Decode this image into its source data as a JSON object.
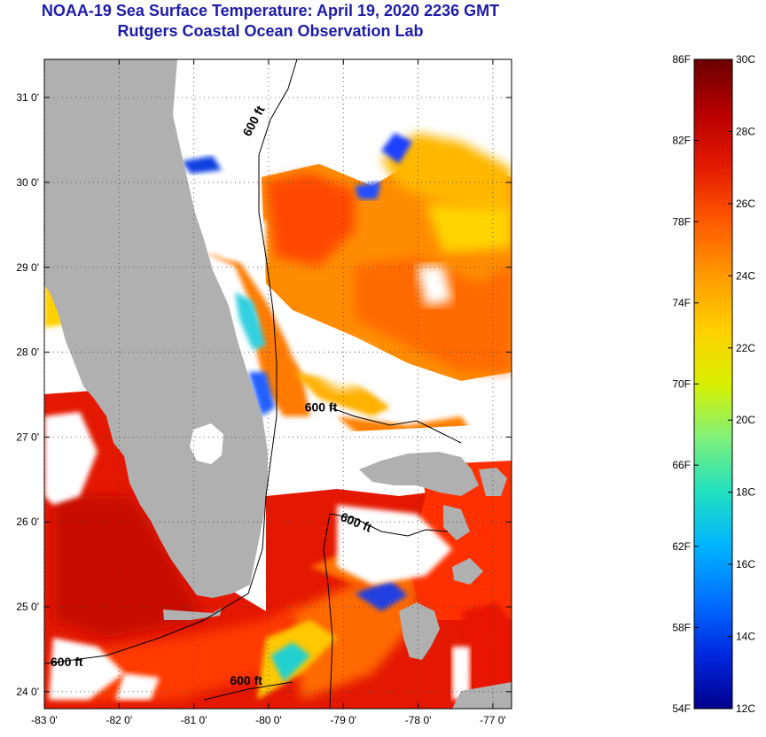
{
  "title": {
    "line1": "NOAA-19 Sea Surface Temperature:  April 19, 2020 2236 GMT",
    "line2": "Rutgers Coastal Ocean Observation Lab"
  },
  "map": {
    "lon_range": [
      -83.0,
      -76.75
    ],
    "lat_range": [
      23.8,
      31.45
    ],
    "lat_ticks": [
      {
        "value": 31,
        "label": "31 0'"
      },
      {
        "value": 30,
        "label": "30 0'"
      },
      {
        "value": 29,
        "label": "29 0'"
      },
      {
        "value": 28,
        "label": "28 0'"
      },
      {
        "value": 27,
        "label": "27 0'"
      },
      {
        "value": 26,
        "label": "26 0'"
      },
      {
        "value": 25,
        "label": "25 0'"
      },
      {
        "value": 24,
        "label": "24 0'"
      }
    ],
    "lon_ticks": [
      {
        "value": -83,
        "label": "-83 0'"
      },
      {
        "value": -82,
        "label": "-82 0'"
      },
      {
        "value": -81,
        "label": "-81 0'"
      },
      {
        "value": -80,
        "label": "-80 0'"
      },
      {
        "value": -79,
        "label": "-79 0'"
      },
      {
        "value": -78,
        "label": "-78 0'"
      },
      {
        "value": -77,
        "label": "-77 0'"
      }
    ],
    "contour_labels": [
      {
        "text": "600 ft",
        "lon": -80.15,
        "lat": 30.7,
        "rotate": -62
      },
      {
        "text": "600 ft",
        "lon": -79.3,
        "lat": 27.3,
        "rotate": 0
      },
      {
        "text": "600 ft",
        "lon": -78.85,
        "lat": 25.95,
        "rotate": 22
      },
      {
        "text": "600 ft",
        "lon": -82.7,
        "lat": 24.3,
        "rotate": 0
      },
      {
        "text": "600 ft",
        "lon": -80.3,
        "lat": 24.08,
        "rotate": 0
      }
    ],
    "land_color": "#b0b0b0",
    "cloud_color": "#ffffff"
  },
  "colorbar": {
    "celsius_range": [
      12,
      30
    ],
    "fahrenheit_range": [
      54,
      86
    ],
    "fahrenheit_labels": [
      "86F",
      "82F",
      "78F",
      "74F",
      "70F",
      "66F",
      "62F",
      "58F",
      "54F"
    ],
    "celsius_labels": [
      "30C",
      "28C",
      "26C",
      "24C",
      "22C",
      "20C",
      "18C",
      "16C",
      "14C",
      "12C"
    ],
    "colors": [
      "#6b0000",
      "#b80000",
      "#e41b00",
      "#ff5a00",
      "#ff9a00",
      "#ffd000",
      "#d8f000",
      "#7ff07a",
      "#20e0c0",
      "#00b4ff",
      "#0070ff",
      "#0028e0",
      "#00008c"
    ]
  }
}
